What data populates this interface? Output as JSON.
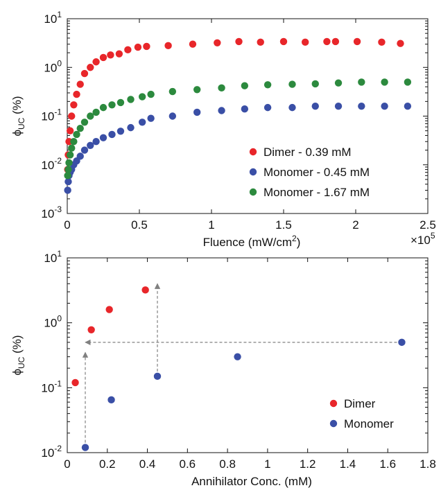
{
  "chart_data": [
    {
      "type": "scatter",
      "title": "",
      "xlabel": "Fluence (mW/cm2)",
      "xlabel_parts": {
        "main": "Fluence (mW/cm",
        "sup": "2",
        "end": ")"
      },
      "ylabel": "ϕUC (%)",
      "ylabel_parts": {
        "main": "ϕ",
        "sub": "UC",
        "end": " (%)"
      },
      "x_multiplier": {
        "text": "×10",
        "exp": "5"
      },
      "xlim": [
        0,
        250000
      ],
      "ylim": [
        0.001,
        10
      ],
      "yscale": "log",
      "x_tick_labels": [
        "0",
        "0.5",
        "1",
        "1.5",
        "2",
        "2.5"
      ],
      "x_ticks": [
        0,
        50000,
        100000,
        150000,
        200000,
        250000
      ],
      "y_ticks": [
        0.001,
        0.01,
        0.1,
        1,
        10
      ],
      "y_tick_labels": [
        {
          "base": "10",
          "exp": "-3"
        },
        {
          "base": "10",
          "exp": "-2"
        },
        {
          "base": "10",
          "exp": "-1"
        },
        {
          "base": "10",
          "exp": "0"
        },
        {
          "base": "10",
          "exp": "1"
        }
      ],
      "grid": false,
      "legend_position": "lower-right",
      "series": [
        {
          "name": "Dimer - 0.39 mM",
          "color": "#e8262a",
          "x": [
            300,
            700,
            1200,
            2000,
            3000,
            4500,
            6500,
            9000,
            12000,
            16000,
            20000,
            25000,
            30000,
            36000,
            42000,
            49000,
            55000,
            70000,
            87000,
            104000,
            119000,
            134000,
            150000,
            165000,
            180000,
            186000,
            201000,
            218000,
            231000
          ],
          "y": [
            0.008,
            0.016,
            0.03,
            0.05,
            0.1,
            0.17,
            0.28,
            0.45,
            0.75,
            1.0,
            1.3,
            1.6,
            1.8,
            1.9,
            2.3,
            2.6,
            2.7,
            2.8,
            3.0,
            3.2,
            3.4,
            3.3,
            3.4,
            3.3,
            3.4,
            3.4,
            3.4,
            3.3,
            3.1
          ],
          "count_note": ""
        },
        {
          "name": "Monomer - 0.45 mM",
          "color": "#3a4fa6",
          "x": [
            300,
            700,
            1200,
            2000,
            3000,
            4500,
            6500,
            9000,
            12000,
            16000,
            20000,
            25000,
            31000,
            37000,
            44000,
            52000,
            58000,
            73000,
            90000,
            107000,
            123000,
            139000,
            156000,
            172000,
            188000,
            204000,
            220000,
            236000
          ],
          "y": [
            0.003,
            0.0045,
            0.006,
            0.007,
            0.008,
            0.01,
            0.012,
            0.015,
            0.02,
            0.025,
            0.03,
            0.036,
            0.042,
            0.049,
            0.058,
            0.075,
            0.09,
            0.1,
            0.12,
            0.13,
            0.14,
            0.15,
            0.15,
            0.16,
            0.16,
            0.16,
            0.16,
            0.16
          ]
        },
        {
          "name": "Monomer - 1.67 mM",
          "color": "#2c8a3e",
          "x": [
            300,
            700,
            1200,
            2000,
            3000,
            4500,
            6500,
            9000,
            12000,
            16000,
            20000,
            25000,
            31000,
            37000,
            44000,
            52000,
            58000,
            73000,
            90000,
            107000,
            123000,
            139000,
            156000,
            172000,
            188000,
            204000,
            220000,
            236000
          ],
          "y": [
            0.006,
            0.008,
            0.011,
            0.016,
            0.022,
            0.03,
            0.042,
            0.056,
            0.075,
            0.1,
            0.12,
            0.15,
            0.17,
            0.19,
            0.22,
            0.25,
            0.28,
            0.32,
            0.35,
            0.38,
            0.42,
            0.44,
            0.45,
            0.46,
            0.48,
            0.5,
            0.5,
            0.5
          ]
        }
      ]
    },
    {
      "type": "scatter",
      "title": "",
      "xlabel": "Annihilator Conc. (mM)",
      "ylabel": "ϕUC (%)",
      "ylabel_parts": {
        "main": "ϕ",
        "sub": "UC",
        "end": " (%)"
      },
      "xlim": [
        0,
        1.8
      ],
      "ylim": [
        0.01,
        10
      ],
      "yscale": "log",
      "x_ticks": [
        0,
        0.2,
        0.4,
        0.6,
        0.8,
        1,
        1.2,
        1.4,
        1.6,
        1.8
      ],
      "x_tick_labels": [
        "0",
        "0.2",
        "0.4",
        "0.6",
        "0.8",
        "1",
        "1.2",
        "1.4",
        "1.6",
        "1.8"
      ],
      "y_ticks": [
        0.01,
        0.1,
        1,
        10
      ],
      "y_tick_labels": [
        {
          "base": "10",
          "exp": "-2"
        },
        {
          "base": "10",
          "exp": "-1"
        },
        {
          "base": "10",
          "exp": "0"
        },
        {
          "base": "10",
          "exp": "1"
        }
      ],
      "grid": false,
      "legend_position": "lower-right",
      "series": [
        {
          "name": "Dimer",
          "color": "#e8262a",
          "x": [
            0.04,
            0.12,
            0.21,
            0.39
          ],
          "y": [
            0.12,
            0.78,
            1.6,
            3.2
          ]
        },
        {
          "name": "Monomer",
          "color": "#3a4fa6",
          "x": [
            0.09,
            0.22,
            0.45,
            0.85,
            1.67
          ],
          "y": [
            0.012,
            0.065,
            0.15,
            0.3,
            0.5
          ]
        }
      ],
      "annotations": {
        "arrow_color": "#808080",
        "arrows": [
          {
            "from": [
              0.09,
              0.012
            ],
            "to": [
              0.09,
              0.35
            ]
          },
          {
            "from": [
              0.45,
              0.15
            ],
            "to": [
              0.45,
              4
            ]
          },
          {
            "from": [
              1.67,
              0.5
            ],
            "to": [
              0.09,
              0.5
            ]
          }
        ]
      }
    }
  ]
}
